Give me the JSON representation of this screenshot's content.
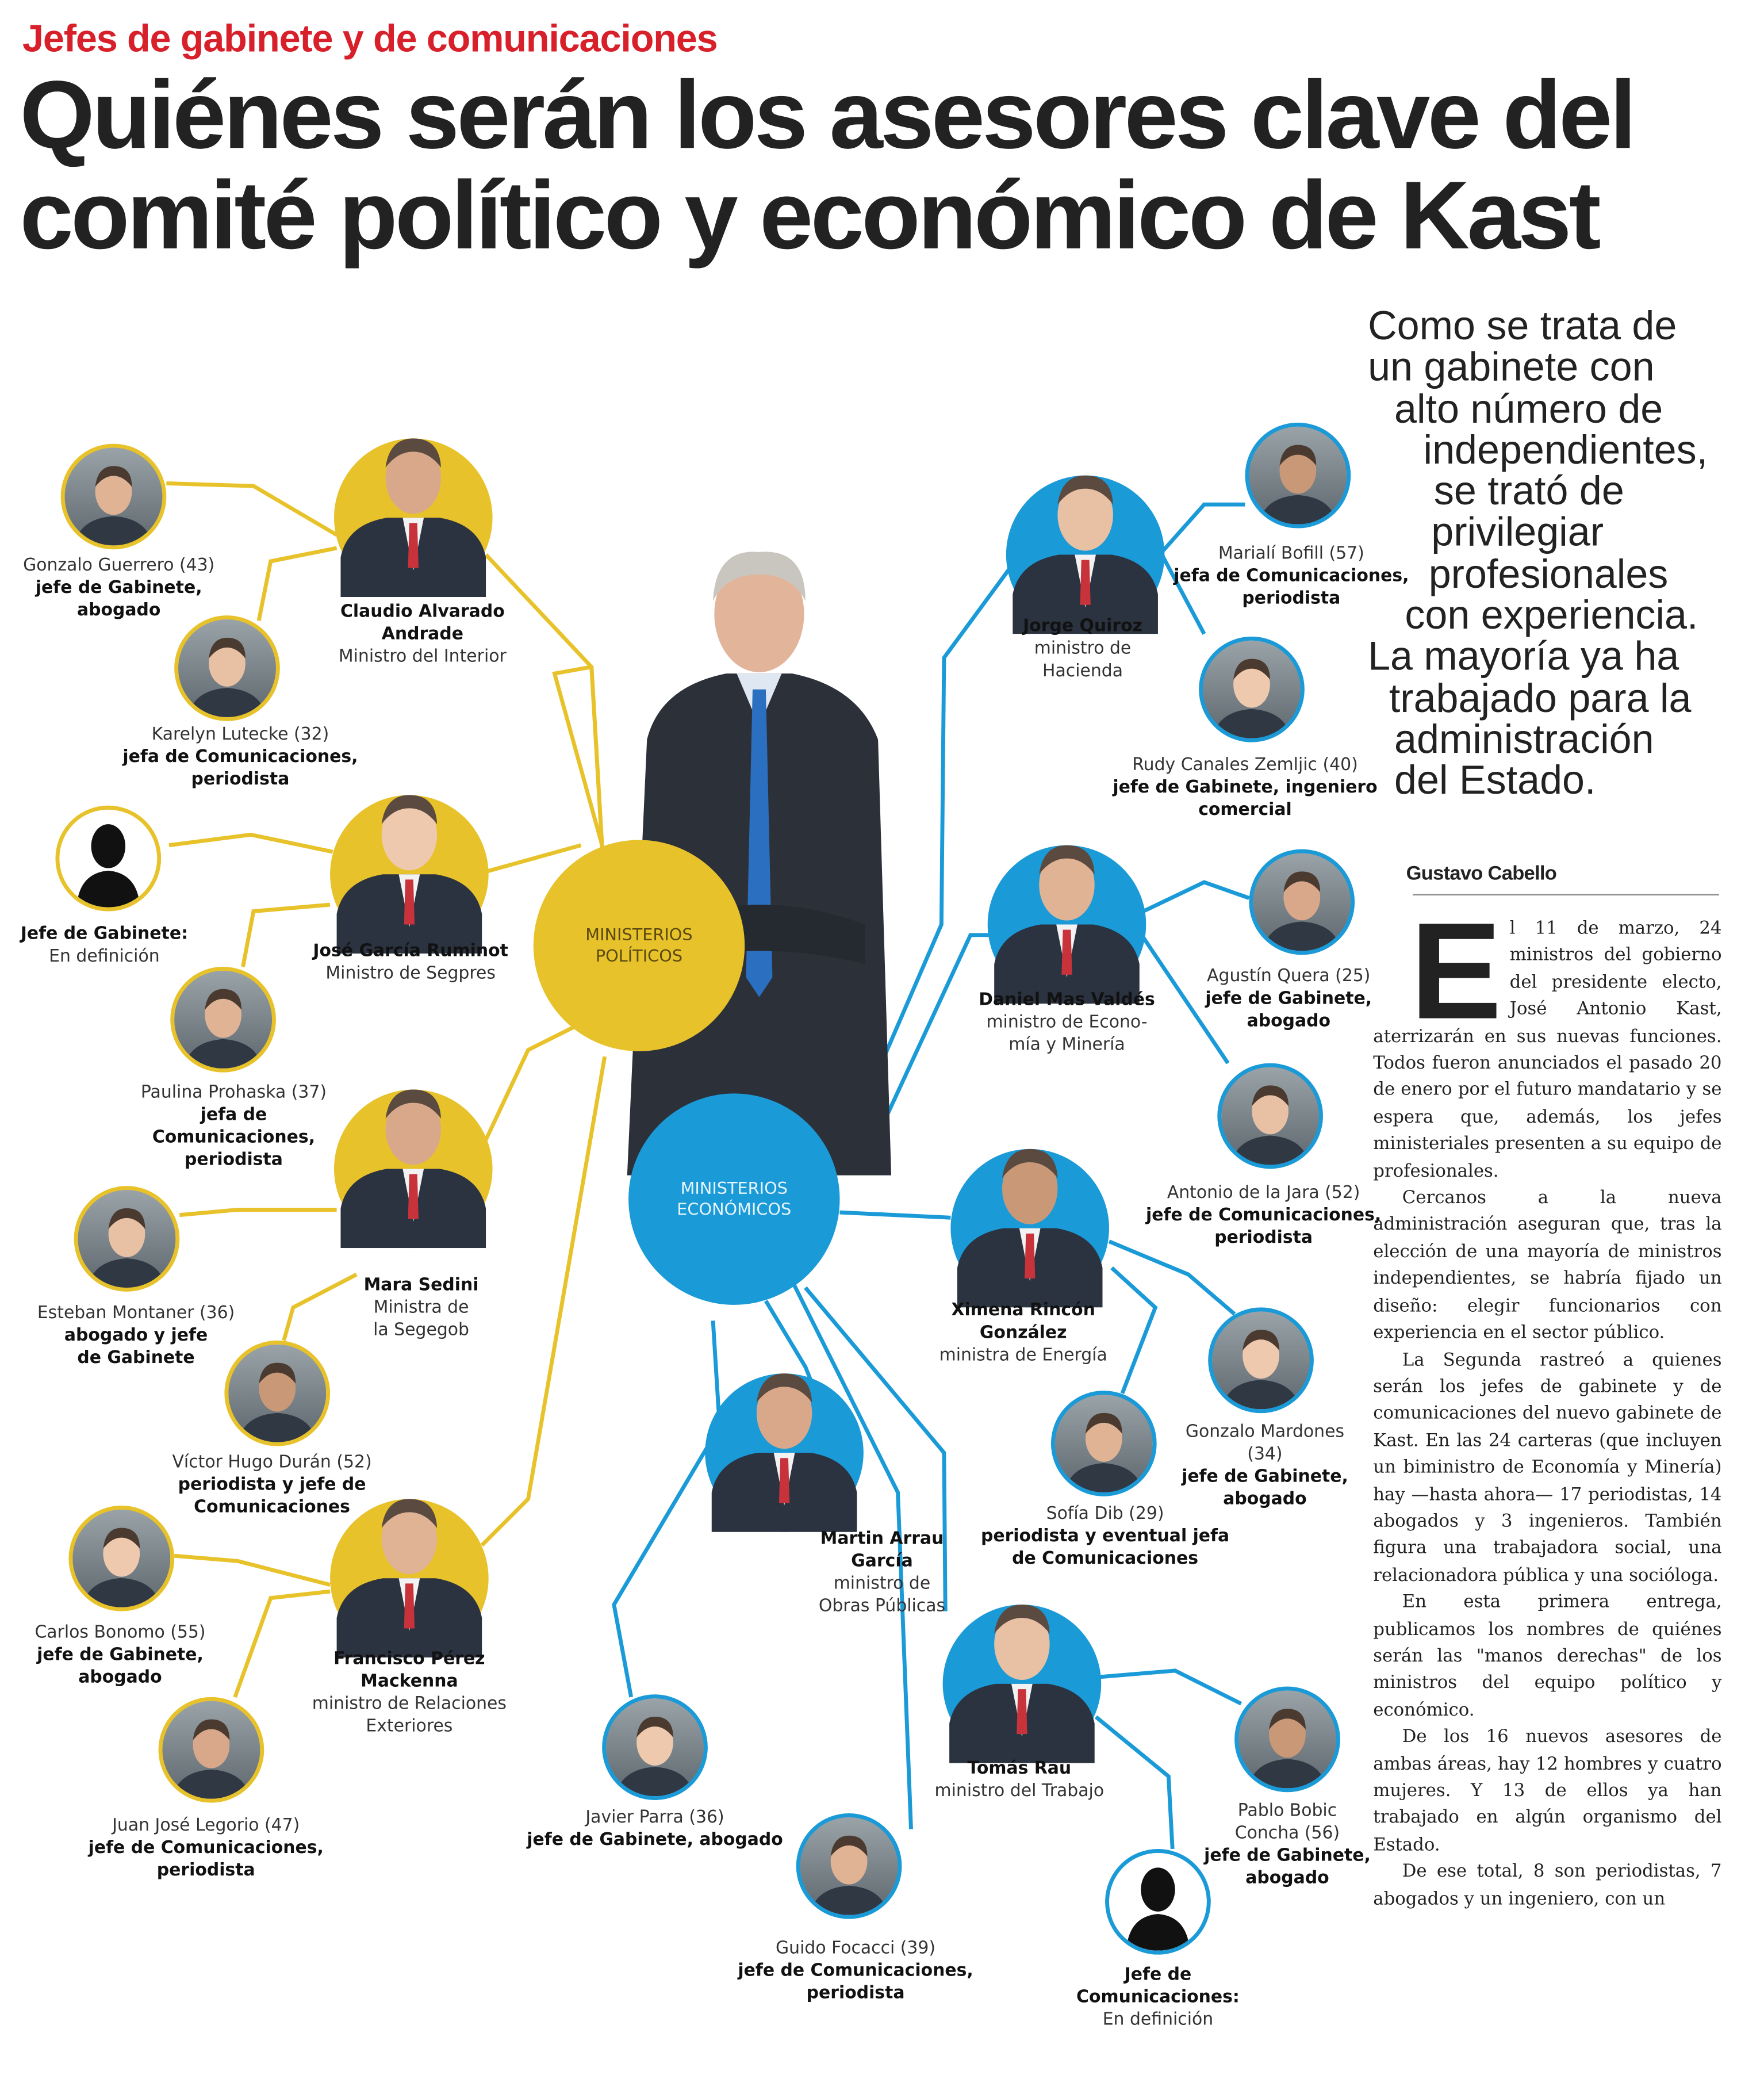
{
  "article": {
    "kicker": "Jefes de gabinete y de comunicaciones",
    "headline_lines": [
      "Quiénes serán los asesores clave del",
      "comité político y económico de Kast"
    ],
    "pull_quote_lines": [
      "Como se trata de",
      "un gabinete con",
      "alto número de",
      "independientes,",
      "se trató de",
      "privilegiar",
      "profesionales",
      "con experiencia.",
      "La mayoría ya ha",
      "trabajado para la",
      "administración",
      "del Estado."
    ],
    "byline": "Gustavo Cabello",
    "drop_cap": "E",
    "paragraphs": [
      "l 11 de marzo, 24 ministros del gobierno del presidente electo, José Antonio Kast, aterrizarán en sus nuevas funciones. Todos fueron anunciados el pasado 20 de enero por el futuro mandatario y se espera que, además, los jefes ministeriales presenten a su equipo de profesionales.",
      "Cercanos a la nueva administración aseguran que, tras la elección de una mayoría de ministros independientes, se habría fijado un diseño: elegir funcionarios con experiencia en el sector público.",
      "La Segunda rastreó a quienes serán los jefes de gabinete y de comunicaciones del nuevo gabinete de Kast. En las 24 carteras (que incluyen un biministro de Economía y Minería) hay —hasta ahora— 17 periodistas, 14 abogados y 3 ingenieros. También figura una trabajadora social, una relacionadora pública y una socióloga.",
      "En esta primera entrega, publicamos los nombres de quiénes serán las \"manos derechas\" de los ministros del equipo político y económico.",
      "De los 16 nuevos asesores de ambas áreas, hay 12 hombres y cuatro mujeres. Y 13 de ellos ya han trabajado en algún organismo del Estado.",
      "De ese total, 8 son periodistas, 7 abogados y un ingeniero, con un"
    ]
  },
  "colors": {
    "kicker": "#d8202a",
    "politico": "#e8c22a",
    "economico": "#1b9ad8"
  },
  "hubs": {
    "politico": {
      "lines": [
        "MINISTERIOS",
        "POLÍTICOS"
      ]
    },
    "economico": {
      "lines": [
        "MINISTERIOS",
        "ECONÓMICOS"
      ]
    }
  },
  "people": [
    {
      "group": "politico",
      "kind": "advisor",
      "lines": [
        [
          "Gonzalo Guerrero (43)",
          0
        ],
        [
          "jefe de Gabinete,",
          1
        ],
        [
          "abogado",
          1
        ]
      ]
    },
    {
      "group": "politico",
      "kind": "minister",
      "lines": [
        [
          "Claudio Alvarado",
          1
        ],
        [
          "Andrade",
          1
        ],
        [
          "Ministro del Interior",
          0
        ]
      ]
    },
    {
      "group": "politico",
      "kind": "advisor",
      "lines": [
        [
          "Karelyn Lutecke (32)",
          0
        ],
        [
          "jefa de Comunicaciones,",
          1
        ],
        [
          "periodista",
          1
        ]
      ]
    },
    {
      "group": "politico",
      "kind": "pending",
      "lines": [
        [
          "Jefe de Gabinete:",
          1
        ],
        [
          "En definición",
          0
        ]
      ]
    },
    {
      "group": "politico",
      "kind": "minister",
      "lines": [
        [
          "José García Ruminot",
          1
        ],
        [
          "Ministro de Segpres",
          0
        ]
      ]
    },
    {
      "group": "politico",
      "kind": "advisor",
      "lines": [
        [
          "Paulina Prohaska (37)",
          0
        ],
        [
          "jefa de",
          1
        ],
        [
          "Comunicaciones,",
          1
        ],
        [
          "periodista",
          1
        ]
      ]
    },
    {
      "group": "politico",
      "kind": "minister",
      "lines": [
        [
          "Mara Sedini",
          1
        ],
        [
          "Ministra de",
          0
        ],
        [
          "la Segegob",
          0
        ]
      ]
    },
    {
      "group": "politico",
      "kind": "advisor",
      "lines": [
        [
          "Esteban Montaner  (36)",
          0
        ],
        [
          "abogado y jefe",
          1
        ],
        [
          "de Gabinete",
          1
        ]
      ]
    },
    {
      "group": "politico",
      "kind": "advisor",
      "lines": [
        [
          "Víctor Hugo Durán (52)",
          0
        ],
        [
          "periodista y jefe de",
          1
        ],
        [
          "Comunicaciones",
          1
        ]
      ]
    },
    {
      "group": "politico",
      "kind": "advisor",
      "lines": [
        [
          "Carlos Bonomo (55)",
          0
        ],
        [
          "jefe de Gabinete,",
          1
        ],
        [
          "abogado",
          1
        ]
      ]
    },
    {
      "group": "politico",
      "kind": "minister",
      "lines": [
        [
          "Francisco Pérez",
          1
        ],
        [
          "Mackenna",
          1
        ],
        [
          "ministro de Relaciones",
          0
        ],
        [
          "Exteriores",
          0
        ]
      ]
    },
    {
      "group": "politico",
      "kind": "advisor",
      "lines": [
        [
          "Juan José Legorio (47)",
          0
        ],
        [
          "jefe de Comunicaciones,",
          1
        ],
        [
          "periodista",
          1
        ]
      ]
    },
    {
      "group": "economico",
      "kind": "minister",
      "lines": [
        [
          "Jorge Quiroz",
          1
        ],
        [
          "ministro de",
          0
        ],
        [
          "Hacienda",
          0
        ]
      ]
    },
    {
      "group": "economico",
      "kind": "advisor",
      "lines": [
        [
          "Marialí Bofill (57)",
          0
        ],
        [
          "jefa de Comunicaciones,",
          1
        ],
        [
          "periodista",
          1
        ]
      ]
    },
    {
      "group": "economico",
      "kind": "advisor",
      "lines": [
        [
          "Rudy Canales Zemljic (40)",
          0
        ],
        [
          "jefe de Gabinete, ingeniero",
          1
        ],
        [
          "comercial",
          1
        ]
      ]
    },
    {
      "group": "economico",
      "kind": "minister",
      "lines": [
        [
          "Daniel Mas Valdés",
          1
        ],
        [
          "ministro de Econo-",
          0
        ],
        [
          "mía y Minería",
          0
        ]
      ]
    },
    {
      "group": "economico",
      "kind": "advisor",
      "lines": [
        [
          "Agustín Quera (25)",
          0
        ],
        [
          "jefe de Gabinete,",
          1
        ],
        [
          "abogado",
          1
        ]
      ]
    },
    {
      "group": "economico",
      "kind": "advisor",
      "lines": [
        [
          "Antonio de la Jara (52)",
          0
        ],
        [
          "jefe de Comunicaciones,",
          1
        ],
        [
          "periodista",
          1
        ]
      ]
    },
    {
      "group": "economico",
      "kind": "minister",
      "lines": [
        [
          "Ximena Rincón",
          1
        ],
        [
          "González",
          1
        ],
        [
          "ministra de Energía",
          0
        ]
      ]
    },
    {
      "group": "economico",
      "kind": "advisor",
      "lines": [
        [
          "Gonzalo Mardones",
          0
        ],
        [
          "(34)",
          0
        ],
        [
          "jefe de Gabinete,",
          1
        ],
        [
          "abogado",
          1
        ]
      ]
    },
    {
      "group": "economico",
      "kind": "advisor",
      "lines": [
        [
          "Sofía Dib (29)",
          0
        ],
        [
          "periodista y eventual jefa",
          1
        ],
        [
          "de Comunicaciones",
          1
        ]
      ]
    },
    {
      "group": "economico",
      "kind": "minister",
      "lines": [
        [
          "Martin Arrau",
          1
        ],
        [
          "García",
          1
        ],
        [
          "ministro de",
          0
        ],
        [
          "Obras Públicas",
          0
        ]
      ]
    },
    {
      "group": "economico",
      "kind": "minister",
      "lines": [
        [
          "Tomás Rau",
          1
        ],
        [
          "ministro del Trabajo",
          0
        ]
      ]
    },
    {
      "group": "economico",
      "kind": "advisor",
      "lines": [
        [
          "Pablo Bobic",
          0
        ],
        [
          "Concha (56)",
          0
        ],
        [
          "jefe de Gabinete,",
          1
        ],
        [
          "abogado",
          1
        ]
      ]
    },
    {
      "group": "economico",
      "kind": "advisor",
      "lines": [
        [
          "Javier Parra (36)",
          0
        ],
        [
          "jefe de Gabinete, abogado",
          1
        ]
      ]
    },
    {
      "group": "economico",
      "kind": "advisor",
      "lines": [
        [
          "Guido Focacci (39)",
          0
        ],
        [
          "jefe de Comunicaciones,",
          1
        ],
        [
          "periodista",
          1
        ]
      ]
    },
    {
      "group": "economico",
      "kind": "pending",
      "lines": [
        [
          "Jefe de",
          1
        ],
        [
          "Comunicaciones:",
          1
        ],
        [
          "En definición",
          0
        ]
      ]
    }
  ]
}
